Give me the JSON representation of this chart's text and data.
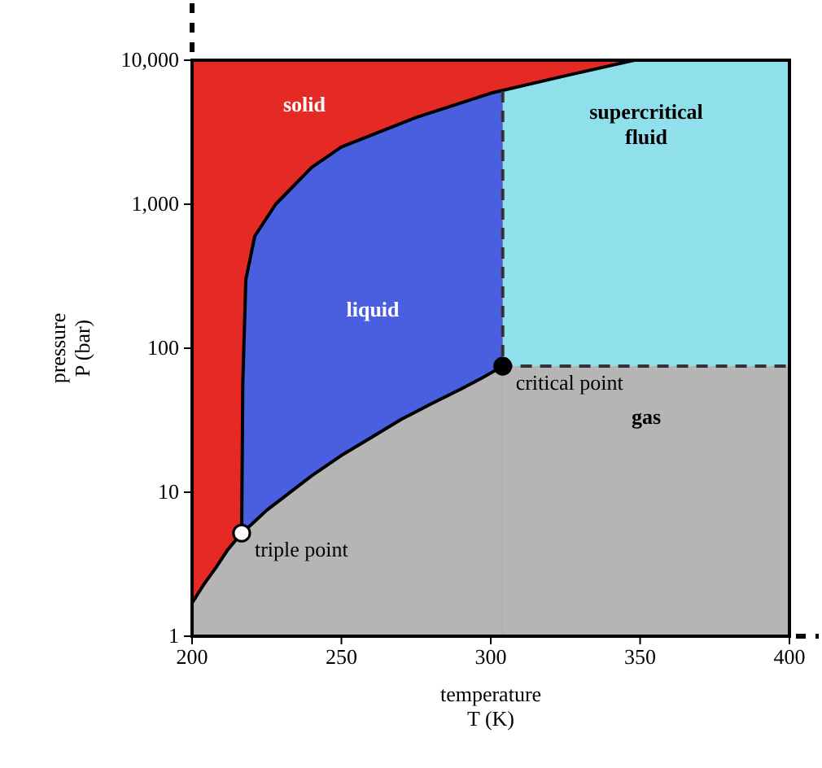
{
  "chart_data": {
    "type": "area",
    "xlabel": "temperature\nT (K)",
    "ylabel": "pressure\nP (bar)",
    "log": "y",
    "xlim": [
      200,
      400
    ],
    "xticks": [
      200,
      250,
      300,
      350,
      400
    ],
    "ylim": [
      1,
      10000
    ],
    "yticks": [
      1,
      10,
      100,
      {
        "value": 1000,
        "label": "1,000"
      },
      {
        "value": 10000,
        "label": "10,000"
      }
    ],
    "grid": false,
    "legend": false,
    "series": [
      {
        "name": "solid",
        "color": "#e52a25",
        "x": [
          200,
          348
        ],
        "values": [
          10000,
          10000
        ]
      },
      {
        "name": "liquid",
        "color": "#4a5fe0",
        "x": [
          216.6,
          217,
          218,
          221,
          228,
          240,
          250,
          275,
          304
        ],
        "values": [
          5.2,
          60,
          300,
          600,
          1000,
          1800,
          2500,
          4000,
          6100
        ]
      },
      {
        "name": "supercritical fluid",
        "color": "#8fe0ea",
        "x": [
          304,
          325,
          348,
          400
        ],
        "values": [
          6100,
          7800,
          10000,
          10000
        ]
      },
      {
        "color": "#b5b5b5",
        "line_style": "solid",
        "x": [
          200,
          204,
          208,
          212,
          216.6,
          220,
          225,
          230,
          240,
          250,
          260,
          270,
          280,
          290,
          297,
          304
        ],
        "values": [
          1.7,
          2.3,
          3,
          4,
          5.2,
          6,
          7.5,
          9,
          13,
          18,
          24,
          32,
          41,
          52,
          62,
          75
        ]
      },
      {
        "name": "gas",
        "color": "#b5b5b5",
        "x": [
          304,
          400
        ],
        "values": [
          75,
          75
        ]
      },
      {
        "type": "line",
        "color": "#000000",
        "line_style": "solid",
        "x": [
          216.6,
          217,
          218,
          221,
          228,
          240,
          250,
          275,
          300,
          325,
          348
        ],
        "values": [
          5.2,
          60,
          300,
          600,
          1000,
          1800,
          2500,
          4000,
          5900,
          7800,
          10000
        ]
      },
      {
        "type": "line",
        "color": "#333333",
        "line_style": "dashed",
        "x": [
          304,
          304,
          400
        ],
        "values": [
          6100,
          75,
          75
        ]
      },
      {
        "type": "scatter",
        "marker": "circle",
        "colors": [
          "#ffffff",
          "#000000"
        ],
        "x": [
          216.6,
          304
        ],
        "values": [
          5.2,
          75
        ]
      }
    ],
    "annotations": [
      {
        "text": "triple point",
        "x": 216.6,
        "y": 5.2
      },
      {
        "text": "critical point",
        "x": 304,
        "y": 75
      }
    ]
  }
}
